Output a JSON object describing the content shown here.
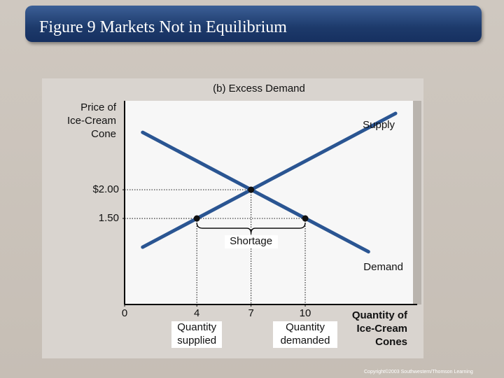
{
  "title": "Figure 9 Markets Not in Equilibrium",
  "chart_data": {
    "type": "line",
    "title": "(b) Excess Demand",
    "y_label": "Price of\nIce-Cream\nCone",
    "x_label": "Quantity of\nIce-Cream\nCones",
    "xlim": [
      0,
      16.2
    ],
    "ylim": [
      0,
      3.55
    ],
    "xticks": [
      0,
      4,
      7,
      10
    ],
    "yticks": [
      {
        "value": 2,
        "label": "$2.00"
      },
      {
        "value": 1.5,
        "label": "1.50"
      }
    ],
    "series": [
      {
        "name": "Supply",
        "color": "#2a5592",
        "x": [
          1,
          15
        ],
        "values": [
          1,
          3.33
        ]
      },
      {
        "name": "Demand",
        "color": "#2a5592",
        "x": [
          1,
          13.5
        ],
        "values": [
          3,
          0.92
        ]
      }
    ],
    "points": {
      "x": [
        4,
        7,
        10
      ],
      "values": [
        1.5,
        2,
        1.5
      ]
    },
    "annotations": [
      "Shortage",
      "Quantity\nsupplied",
      "Quantity\ndemanded"
    ]
  },
  "copyright": "Copyright©2003 Southwestern/Thomson Learning"
}
